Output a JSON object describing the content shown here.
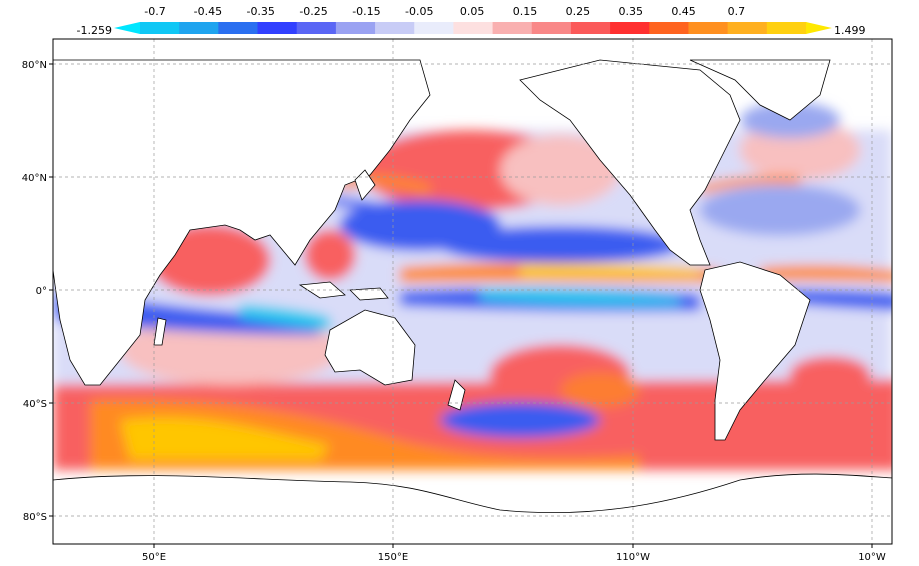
{
  "colorbar": {
    "min_label": "-1.259",
    "max_label": "1.499",
    "labels": [
      "-0.7",
      "-0.45",
      "-0.35",
      "-0.25",
      "-0.15",
      "-0.05",
      "0.05",
      "0.15",
      "0.25",
      "0.35",
      "0.45",
      "0.7"
    ],
    "colors": [
      "#00e6ff",
      "#10c7f5",
      "#1fa4ef",
      "#2a6ff0",
      "#3140ff",
      "#5a66f5",
      "#9aa2f2",
      "#c8ccf6",
      "#e9ecfb",
      "#fde0e0",
      "#f9b0b0",
      "#f98888",
      "#fb5a5a",
      "#ff3030",
      "#ff6420",
      "#ff9020",
      "#ffb020",
      "#ffd010",
      "#ffe800"
    ]
  },
  "axes": {
    "lat_labels": [
      "80°N",
      "40°N",
      "0°",
      "40°S",
      "80°S"
    ],
    "lon_labels": [
      "50°E",
      "150°E",
      "110°W",
      "10°W"
    ]
  },
  "map": {
    "ocean_colors": {
      "cyan": "#20c8ee",
      "blue": "#3a5cf0",
      "lightblue": "#9aa8f0",
      "pale": "#dde0f8",
      "pink": "#f8c0c0",
      "red": "#f86060",
      "orange": "#ff8a20",
      "yellow": "#ffd400"
    },
    "land_color": "#ffffff",
    "coast_color": "#000000",
    "grid_color": "#9a9a9a"
  }
}
